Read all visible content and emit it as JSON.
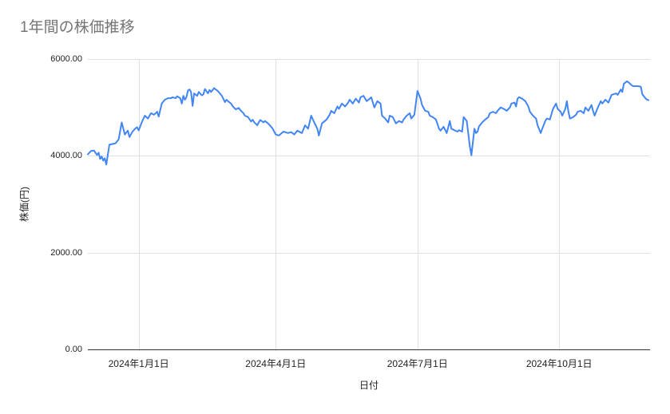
{
  "colors": {
    "line": "#4285f4",
    "grid": "#e0e0e0",
    "axis": "#333333",
    "title_text": "#757575",
    "label_text": "#222222"
  },
  "chart_data": {
    "type": "line",
    "title": "1年間の株価推移",
    "xlabel": "日付",
    "ylabel": "株価(円)",
    "ylim": [
      0,
      6000
    ],
    "x_domain_days": [
      0,
      365
    ],
    "grid": true,
    "legend_position": "none",
    "y_ticks": [
      {
        "value": 0,
        "label": "0.00"
      },
      {
        "value": 2000,
        "label": "2000.00"
      },
      {
        "value": 4000,
        "label": "4000.00"
      },
      {
        "value": 6000,
        "label": "6000.00"
      }
    ],
    "x_ticks": [
      {
        "day": 33,
        "label": "2024年1月1日"
      },
      {
        "day": 122,
        "label": "2024年4月1日"
      },
      {
        "day": 214,
        "label": "2024年7月1日"
      },
      {
        "day": 306,
        "label": "2024年10月1日"
      }
    ],
    "points": [
      [
        0,
        4030
      ],
      [
        2,
        4100
      ],
      [
        4,
        4110
      ],
      [
        6,
        4015
      ],
      [
        7,
        4065
      ],
      [
        8,
        3935
      ],
      [
        9,
        3985
      ],
      [
        10,
        3900
      ],
      [
        11,
        3950
      ],
      [
        12,
        3820
      ],
      [
        14,
        4230
      ],
      [
        18,
        4260
      ],
      [
        20,
        4340
      ],
      [
        22,
        4690
      ],
      [
        24,
        4440
      ],
      [
        26,
        4520
      ],
      [
        27,
        4390
      ],
      [
        29,
        4500
      ],
      [
        31,
        4570
      ],
      [
        32,
        4590
      ],
      [
        33,
        4525
      ],
      [
        35,
        4690
      ],
      [
        37,
        4830
      ],
      [
        39,
        4770
      ],
      [
        41,
        4880
      ],
      [
        43,
        4850
      ],
      [
        45,
        4910
      ],
      [
        46,
        4810
      ],
      [
        48,
        5080
      ],
      [
        50,
        5160
      ],
      [
        52,
        5190
      ],
      [
        54,
        5190
      ],
      [
        55,
        5210
      ],
      [
        57,
        5190
      ],
      [
        58,
        5230
      ],
      [
        60,
        5190
      ],
      [
        61,
        5080
      ],
      [
        62,
        5240
      ],
      [
        63,
        5160
      ],
      [
        64,
        5210
      ],
      [
        65,
        5350
      ],
      [
        66,
        5370
      ],
      [
        67,
        5320
      ],
      [
        68,
        5030
      ],
      [
        69,
        5290
      ],
      [
        71,
        5240
      ],
      [
        72,
        5320
      ],
      [
        74,
        5250
      ],
      [
        75,
        5270
      ],
      [
        76,
        5380
      ],
      [
        78,
        5290
      ],
      [
        79,
        5360
      ],
      [
        80,
        5320
      ],
      [
        82,
        5400
      ],
      [
        83,
        5370
      ],
      [
        84,
        5350
      ],
      [
        85,
        5320
      ],
      [
        87,
        5240
      ],
      [
        89,
        5110
      ],
      [
        90,
        5160
      ],
      [
        91,
        5130
      ],
      [
        93,
        5080
      ],
      [
        94,
        5025
      ],
      [
        96,
        4960
      ],
      [
        98,
        4990
      ],
      [
        99,
        4945
      ],
      [
        101,
        4880
      ],
      [
        102,
        4830
      ],
      [
        104,
        4800
      ],
      [
        106,
        4710
      ],
      [
        107,
        4745
      ],
      [
        108,
        4695
      ],
      [
        110,
        4630
      ],
      [
        111,
        4695
      ],
      [
        112,
        4740
      ],
      [
        114,
        4690
      ],
      [
        115,
        4720
      ],
      [
        117,
        4670
      ],
      [
        119,
        4600
      ],
      [
        120,
        4560
      ],
      [
        122,
        4440
      ],
      [
        124,
        4420
      ],
      [
        127,
        4500
      ],
      [
        130,
        4470
      ],
      [
        132,
        4490
      ],
      [
        134,
        4440
      ],
      [
        136,
        4520
      ],
      [
        139,
        4470
      ],
      [
        141,
        4630
      ],
      [
        143,
        4560
      ],
      [
        145,
        4830
      ],
      [
        147,
        4690
      ],
      [
        149,
        4560
      ],
      [
        150,
        4420
      ],
      [
        152,
        4670
      ],
      [
        155,
        4750
      ],
      [
        157,
        4850
      ],
      [
        158,
        4930
      ],
      [
        160,
        4880
      ],
      [
        162,
        5020
      ],
      [
        163,
        4970
      ],
      [
        165,
        5080
      ],
      [
        167,
        5020
      ],
      [
        169,
        5100
      ],
      [
        170,
        5160
      ],
      [
        172,
        5080
      ],
      [
        174,
        5180
      ],
      [
        176,
        5100
      ],
      [
        177,
        5210
      ],
      [
        179,
        5240
      ],
      [
        181,
        5130
      ],
      [
        183,
        5180
      ],
      [
        184,
        5210
      ],
      [
        186,
        5000
      ],
      [
        188,
        5130
      ],
      [
        190,
        5080
      ],
      [
        191,
        4830
      ],
      [
        193,
        4770
      ],
      [
        195,
        4690
      ],
      [
        196,
        4830
      ],
      [
        198,
        4800
      ],
      [
        200,
        4670
      ],
      [
        202,
        4720
      ],
      [
        204,
        4690
      ],
      [
        205,
        4750
      ],
      [
        207,
        4830
      ],
      [
        209,
        4880
      ],
      [
        210,
        4770
      ],
      [
        212,
        4850
      ],
      [
        214,
        5340
      ],
      [
        216,
        5180
      ],
      [
        217,
        5050
      ],
      [
        219,
        4930
      ],
      [
        221,
        4910
      ],
      [
        222,
        4830
      ],
      [
        224,
        4800
      ],
      [
        226,
        4750
      ],
      [
        228,
        4560
      ],
      [
        229,
        4520
      ],
      [
        231,
        4600
      ],
      [
        233,
        4470
      ],
      [
        235,
        4720
      ],
      [
        236,
        4560
      ],
      [
        238,
        4530
      ],
      [
        240,
        4500
      ],
      [
        241,
        4530
      ],
      [
        243,
        4500
      ],
      [
        244,
        4800
      ],
      [
        246,
        4720
      ],
      [
        248,
        4200
      ],
      [
        249,
        4010
      ],
      [
        251,
        4560
      ],
      [
        252,
        4470
      ],
      [
        253,
        4500
      ],
      [
        254,
        4610
      ],
      [
        256,
        4690
      ],
      [
        258,
        4750
      ],
      [
        260,
        4800
      ],
      [
        261,
        4880
      ],
      [
        263,
        4910
      ],
      [
        265,
        4880
      ],
      [
        266,
        4930
      ],
      [
        268,
        5000
      ],
      [
        270,
        4970
      ],
      [
        272,
        4930
      ],
      [
        274,
        5000
      ],
      [
        275,
        5080
      ],
      [
        277,
        5100
      ],
      [
        278,
        5020
      ],
      [
        279,
        5180
      ],
      [
        280,
        5210
      ],
      [
        282,
        5180
      ],
      [
        284,
        5130
      ],
      [
        286,
        5020
      ],
      [
        287,
        4910
      ],
      [
        289,
        4830
      ],
      [
        291,
        4770
      ],
      [
        292,
        4630
      ],
      [
        294,
        4470
      ],
      [
        295,
        4560
      ],
      [
        297,
        4720
      ],
      [
        298,
        4770
      ],
      [
        300,
        4750
      ],
      [
        302,
        4970
      ],
      [
        304,
        5080
      ],
      [
        305,
        4970
      ],
      [
        307,
        4910
      ],
      [
        308,
        4830
      ],
      [
        310,
        4970
      ],
      [
        311,
        5130
      ],
      [
        312,
        4910
      ],
      [
        313,
        4770
      ],
      [
        315,
        4800
      ],
      [
        317,
        4850
      ],
      [
        318,
        4910
      ],
      [
        320,
        4930
      ],
      [
        322,
        4880
      ],
      [
        323,
        5000
      ],
      [
        325,
        4930
      ],
      [
        327,
        5050
      ],
      [
        328,
        4930
      ],
      [
        329,
        4830
      ],
      [
        331,
        4990
      ],
      [
        333,
        5130
      ],
      [
        334,
        5080
      ],
      [
        336,
        5160
      ],
      [
        338,
        5100
      ],
      [
        340,
        5260
      ],
      [
        341,
        5270
      ],
      [
        343,
        5290
      ],
      [
        344,
        5260
      ],
      [
        346,
        5370
      ],
      [
        347,
        5320
      ],
      [
        348,
        5490
      ],
      [
        350,
        5540
      ],
      [
        351,
        5520
      ],
      [
        353,
        5460
      ],
      [
        354,
        5440
      ],
      [
        357,
        5440
      ],
      [
        359,
        5430
      ],
      [
        360,
        5270
      ],
      [
        362,
        5190
      ],
      [
        363,
        5160
      ],
      [
        364,
        5150
      ]
    ]
  }
}
